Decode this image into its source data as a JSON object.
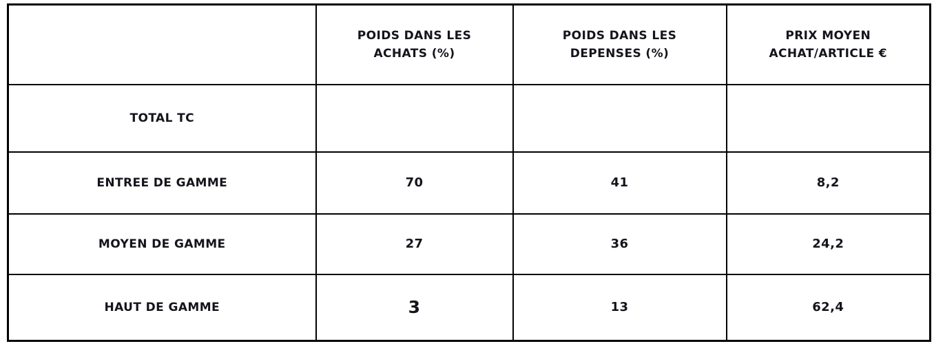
{
  "page": {
    "background_color": "#ffffff",
    "border_color": "#000000",
    "text_color": "#14141c"
  },
  "table": {
    "headers": [
      {
        "line1": "",
        "line2": ""
      },
      {
        "line1": "POIDS DANS LES",
        "line2": "ACHATS (%)"
      },
      {
        "line1": "POIDS DANS LES",
        "line2": "DEPENSES (%)"
      },
      {
        "line1": "PRIX MOYEN",
        "line2": "ACHAT/ARTICLE €"
      }
    ],
    "rows": [
      {
        "label": "TOTAL TC",
        "poids_achats": "",
        "poids_depenses": "",
        "prix_moyen": ""
      },
      {
        "label": "ENTREE DE GAMME",
        "poids_achats": "70",
        "poids_depenses": "41",
        "prix_moyen": "8,2"
      },
      {
        "label": "MOYEN DE GAMME",
        "poids_achats": "27",
        "poids_depenses": "36",
        "prix_moyen": "24,2"
      },
      {
        "label": "HAUT DE GAMME",
        "poids_achats": "3",
        "poids_depenses": "13",
        "prix_moyen": "62,4"
      }
    ]
  },
  "chart_data": {
    "type": "table",
    "title": "",
    "columns": [
      "",
      "POIDS DANS LES ACHATS (%)",
      "POIDS DANS LES DEPENSES (%)",
      "PRIX MOYEN ACHAT/ARTICLE €"
    ],
    "rows": [
      [
        "TOTAL TC",
        null,
        null,
        null
      ],
      [
        "ENTREE DE GAMME",
        70,
        41,
        8.2
      ],
      [
        "MOYEN DE GAMME",
        27,
        36,
        24.2
      ],
      [
        "HAUT DE GAMME",
        3,
        13,
        62.4
      ]
    ],
    "notes": "Decimal values shown with French comma separator (8,2 / 24,2 / 62,4). Value 3 rendered in larger type. TOTAL TC row cells are empty."
  }
}
